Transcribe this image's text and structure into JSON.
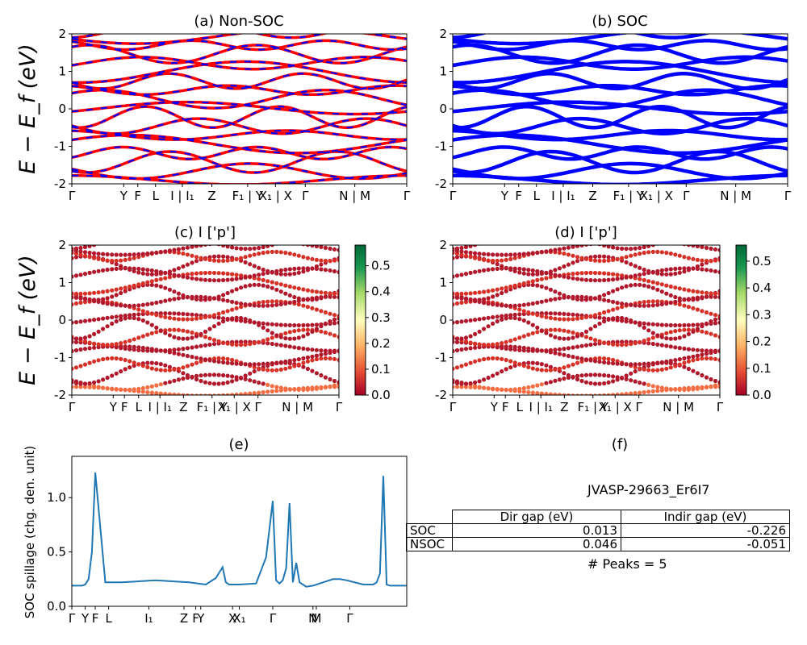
{
  "panels": {
    "a": {
      "title": "(a) Non-SOC",
      "ylabel": "E − E_f (eV)"
    },
    "b": {
      "title": "(b) SOC"
    },
    "c": {
      "title": "(c)  I ['p']",
      "ylabel": "E − E_f (eV)"
    },
    "d": {
      "title": "(d) I ['p']"
    },
    "e": {
      "title": "(e)",
      "ylabel": "SOC spillage (chg. den. unit)"
    },
    "f": {
      "title": "(f)",
      "material": "JVASP-29663_Er6I7",
      "table": {
        "headers": [
          "Dir gap (eV)",
          "Indir gap (eV)"
        ],
        "rows": [
          {
            "label": "SOC",
            "dir": "0.013",
            "indir": "-0.226"
          },
          {
            "label": "NSOC",
            "dir": "0.046",
            "indir": "-0.051"
          }
        ]
      },
      "peaks": "# Peaks = 5"
    }
  },
  "chart_data": [
    {
      "id": "a",
      "type": "line",
      "title": "(a) Non-SOC",
      "ylabel": "E − E_f (eV)",
      "ylim": [
        -2,
        2
      ],
      "yticks": [
        -2,
        -1,
        0,
        1,
        2
      ],
      "xticklabels": [
        "Γ",
        "Y",
        "F",
        "L",
        "I | I₁",
        "Z",
        "F₁ | Y",
        "X₁ | X",
        "Γ",
        "N | M",
        "Γ"
      ],
      "series": [
        {
          "name": "Non-SOC",
          "color": "#ff0000"
        },
        {
          "name": "SOC overlay",
          "color": "#0000ff"
        }
      ]
    },
    {
      "id": "b",
      "type": "line",
      "title": "(b) SOC",
      "ylim": [
        -2,
        2
      ],
      "yticks": [
        -2,
        -1,
        0,
        1,
        2
      ],
      "xticklabels": [
        "Γ",
        "Y",
        "F",
        "L",
        "I | I₁",
        "Z",
        "F₁ | Y",
        "X₁ | X",
        "Γ",
        "N | M",
        "Γ"
      ],
      "series": [
        {
          "name": "SOC",
          "color": "#0000ff"
        }
      ]
    },
    {
      "id": "c",
      "type": "scatter",
      "title": "(c)  I ['p']",
      "ylabel": "E − E_f (eV)",
      "ylim": [
        -2,
        2
      ],
      "yticks": [
        -2,
        -1,
        0,
        1,
        2
      ],
      "xticklabels": [
        "Γ",
        "Y",
        "F",
        "L",
        "I | I₁",
        "Z",
        "F₁ | Y",
        "X₁ | X",
        "Γ",
        "N | M",
        "Γ"
      ],
      "colorbar": {
        "range": [
          0.0,
          0.58
        ],
        "ticks": [
          "0.0",
          "0.1",
          "0.2",
          "0.3",
          "0.4",
          "0.5"
        ],
        "colormap": "RdYlGn"
      }
    },
    {
      "id": "d",
      "type": "scatter",
      "title": "(d) I ['p']",
      "ylim": [
        -2,
        2
      ],
      "yticks": [
        -2,
        -1,
        0,
        1,
        2
      ],
      "xticklabels": [
        "Γ",
        "Y",
        "F",
        "L",
        "I | I₁",
        "Z",
        "F₁ | Y",
        "X₁ | X",
        "Γ",
        "N | M",
        "Γ"
      ],
      "colorbar": {
        "range": [
          0.0,
          0.56
        ],
        "ticks": [
          "0.0",
          "0.1",
          "0.2",
          "0.3",
          "0.4",
          "0.5"
        ],
        "colormap": "RdYlGn"
      }
    },
    {
      "id": "e",
      "type": "line",
      "title": "(e)",
      "ylabel": "SOC spillage (chg. den. unit)",
      "ylim": [
        0,
        1.38
      ],
      "yticks": [
        0.0,
        0.5,
        1.0
      ],
      "xticklabels": [
        "Γ",
        "Y",
        "F",
        "L",
        "I₁",
        "Z",
        "F",
        "Y",
        "X",
        "X₁",
        "Γ",
        "N",
        "M",
        "Γ"
      ],
      "series": [
        {
          "name": "spillage",
          "color": "#1f77b4",
          "x": [
            0,
            3,
            4,
            5,
            6,
            7,
            10,
            15,
            20,
            25,
            30,
            35,
            40,
            43,
            45,
            46,
            47,
            50,
            55,
            58,
            60,
            61,
            62,
            63,
            64,
            65,
            66,
            67,
            68,
            69,
            70,
            72,
            75,
            78,
            80,
            82,
            87,
            90,
            91,
            92,
            93,
            94,
            95,
            96,
            97,
            98,
            99,
            100
          ],
          "y": [
            0.19,
            0.19,
            0.2,
            0.25,
            0.5,
            1.23,
            0.22,
            0.22,
            0.23,
            0.24,
            0.23,
            0.22,
            0.2,
            0.26,
            0.36,
            0.22,
            0.2,
            0.2,
            0.21,
            0.45,
            0.97,
            0.24,
            0.21,
            0.24,
            0.35,
            0.95,
            0.22,
            0.4,
            0.22,
            0.2,
            0.18,
            0.19,
            0.22,
            0.25,
            0.25,
            0.24,
            0.2,
            0.2,
            0.22,
            0.3,
            1.2,
            0.2,
            0.19,
            0.19,
            0.19,
            0.19,
            0.19,
            0.19
          ]
        }
      ]
    }
  ]
}
